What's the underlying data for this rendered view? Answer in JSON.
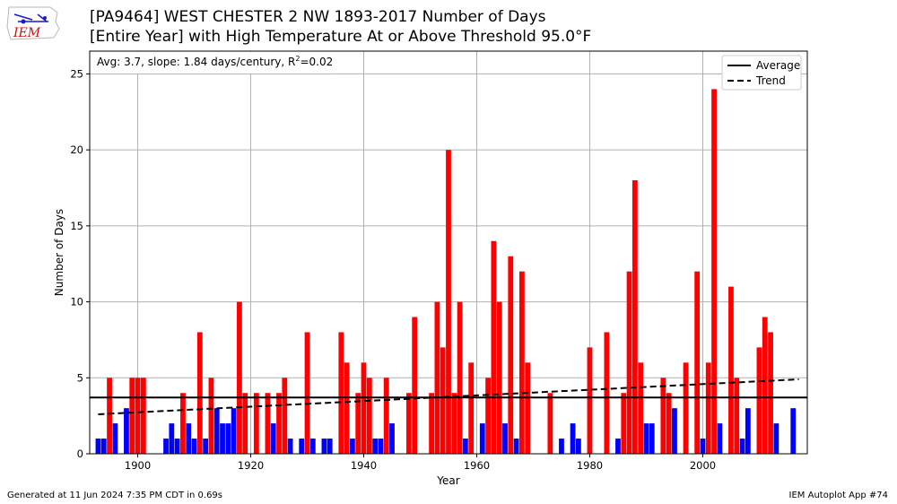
{
  "header": {
    "title_line1": "[PA9464] WEST CHESTER 2 NW 1893-2017 Number of Days",
    "title_line2": "[Entire Year] with High Temperature At or Above Threshold 95.0°F",
    "logo_text": "IEM"
  },
  "footer": {
    "generated": "Generated at 11 Jun 2024 7:35 PM CDT in 0.69s",
    "app": "IEM Autoplot App #74"
  },
  "colors": {
    "above": "#ff0000",
    "below": "#0000ff",
    "grid": "#b0b0b0"
  },
  "chart_data": {
    "type": "bar",
    "xlabel": "Year",
    "ylabel": "Number of Days",
    "xlim": [
      1891.5,
      2018.5
    ],
    "ylim": [
      0,
      26.5
    ],
    "xticks": [
      1900,
      1920,
      1940,
      1960,
      1980,
      2000
    ],
    "yticks": [
      0,
      5,
      10,
      15,
      20,
      25
    ],
    "grid": true,
    "annotation": "Avg: 3.7, slope: 1.84 days/century, R",
    "annotation_sup": "2",
    "annotation_tail": "=0.02",
    "average": 3.7,
    "trend": {
      "start": [
        1893,
        2.6
      ],
      "end": [
        2017,
        4.9
      ]
    },
    "legend": {
      "position": "top-right",
      "entries": [
        "Average",
        "Trend"
      ]
    },
    "points": [
      [
        1893,
        1
      ],
      [
        1894,
        1
      ],
      [
        1895,
        5
      ],
      [
        1896,
        2
      ],
      [
        1898,
        3
      ],
      [
        1899,
        5
      ],
      [
        1900,
        5
      ],
      [
        1901,
        5
      ],
      [
        1905,
        1
      ],
      [
        1906,
        2
      ],
      [
        1907,
        1
      ],
      [
        1908,
        4
      ],
      [
        1909,
        2
      ],
      [
        1910,
        1
      ],
      [
        1911,
        8
      ],
      [
        1912,
        1
      ],
      [
        1913,
        5
      ],
      [
        1914,
        3
      ],
      [
        1915,
        2
      ],
      [
        1916,
        2
      ],
      [
        1917,
        3
      ],
      [
        1918,
        10
      ],
      [
        1919,
        4
      ],
      [
        1921,
        4
      ],
      [
        1923,
        4
      ],
      [
        1924,
        2
      ],
      [
        1925,
        4
      ],
      [
        1926,
        5
      ],
      [
        1927,
        1
      ],
      [
        1929,
        1
      ],
      [
        1930,
        8
      ],
      [
        1931,
        1
      ],
      [
        1933,
        1
      ],
      [
        1934,
        1
      ],
      [
        1936,
        8
      ],
      [
        1937,
        6
      ],
      [
        1938,
        1
      ],
      [
        1939,
        4
      ],
      [
        1940,
        6
      ],
      [
        1941,
        5
      ],
      [
        1942,
        1
      ],
      [
        1943,
        1
      ],
      [
        1944,
        5
      ],
      [
        1945,
        2
      ],
      [
        1948,
        4
      ],
      [
        1949,
        9
      ],
      [
        1952,
        4
      ],
      [
        1953,
        10
      ],
      [
        1954,
        7
      ],
      [
        1955,
        20
      ],
      [
        1956,
        4
      ],
      [
        1957,
        10
      ],
      [
        1958,
        1
      ],
      [
        1959,
        6
      ],
      [
        1961,
        2
      ],
      [
        1962,
        5
      ],
      [
        1963,
        14
      ],
      [
        1964,
        10
      ],
      [
        1965,
        2
      ],
      [
        1966,
        13
      ],
      [
        1967,
        1
      ],
      [
        1968,
        12
      ],
      [
        1969,
        6
      ],
      [
        1973,
        4
      ],
      [
        1975,
        1
      ],
      [
        1977,
        2
      ],
      [
        1978,
        1
      ],
      [
        1980,
        7
      ],
      [
        1983,
        8
      ],
      [
        1985,
        1
      ],
      [
        1986,
        4
      ],
      [
        1987,
        12
      ],
      [
        1988,
        18
      ],
      [
        1989,
        6
      ],
      [
        1990,
        2
      ],
      [
        1991,
        2
      ],
      [
        1993,
        5
      ],
      [
        1994,
        4
      ],
      [
        1995,
        3
      ],
      [
        1997,
        6
      ],
      [
        1999,
        12
      ],
      [
        2000,
        1
      ],
      [
        2001,
        6
      ],
      [
        2002,
        24
      ],
      [
        2003,
        2
      ],
      [
        2005,
        11
      ],
      [
        2006,
        5
      ],
      [
        2007,
        1
      ],
      [
        2008,
        3
      ],
      [
        2010,
        7
      ],
      [
        2011,
        9
      ],
      [
        2012,
        8
      ],
      [
        2013,
        2
      ],
      [
        2016,
        3
      ]
    ]
  }
}
